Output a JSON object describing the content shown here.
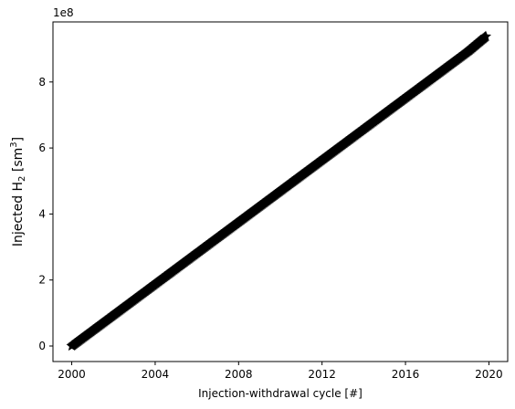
{
  "chart_data": {
    "type": "scatter",
    "xlabel": "Injection-withdrawal cycle [#]",
    "ylabel": {
      "base": "Injected H",
      "sub": "2",
      "unit_open": " [sm",
      "sup": "3",
      "unit_close": "]"
    },
    "offset_label": "1e8",
    "xlim": [
      1999.1,
      2020.9
    ],
    "ylim": [
      -47000000.0,
      982000000.0
    ],
    "x_ticks": [
      2000,
      2004,
      2008,
      2012,
      2016,
      2020
    ],
    "y_ticks": [
      0,
      200000000.0,
      400000000.0,
      600000000.0,
      800000000.0
    ],
    "y_tick_labels": [
      "0",
      "2",
      "4",
      "6",
      "8"
    ],
    "grid": false,
    "marker": "star",
    "color": "#000000",
    "series": [
      {
        "x": [
          2000.0,
          2001.0,
          2002.0,
          2003.0,
          2004.0,
          2005.0,
          2006.0,
          2007.0,
          2008.0,
          2009.0,
          2010.0,
          2011.0,
          2012.0,
          2013.0,
          2014.0,
          2015.0,
          2016.0,
          2017.0,
          2018.0,
          2019.0,
          2019.85
        ],
        "y": [
          0,
          47000000.0,
          94000000.0,
          141000000.0,
          188000000.0,
          235000000.0,
          282000000.0,
          329000000.0,
          376000000.0,
          423000000.0,
          470000000.0,
          517000000.0,
          564000000.0,
          611000000.0,
          658000000.0,
          705000000.0,
          752000000.0,
          799000000.0,
          846000000.0,
          893000000.0,
          938000000.0
        ]
      }
    ]
  }
}
